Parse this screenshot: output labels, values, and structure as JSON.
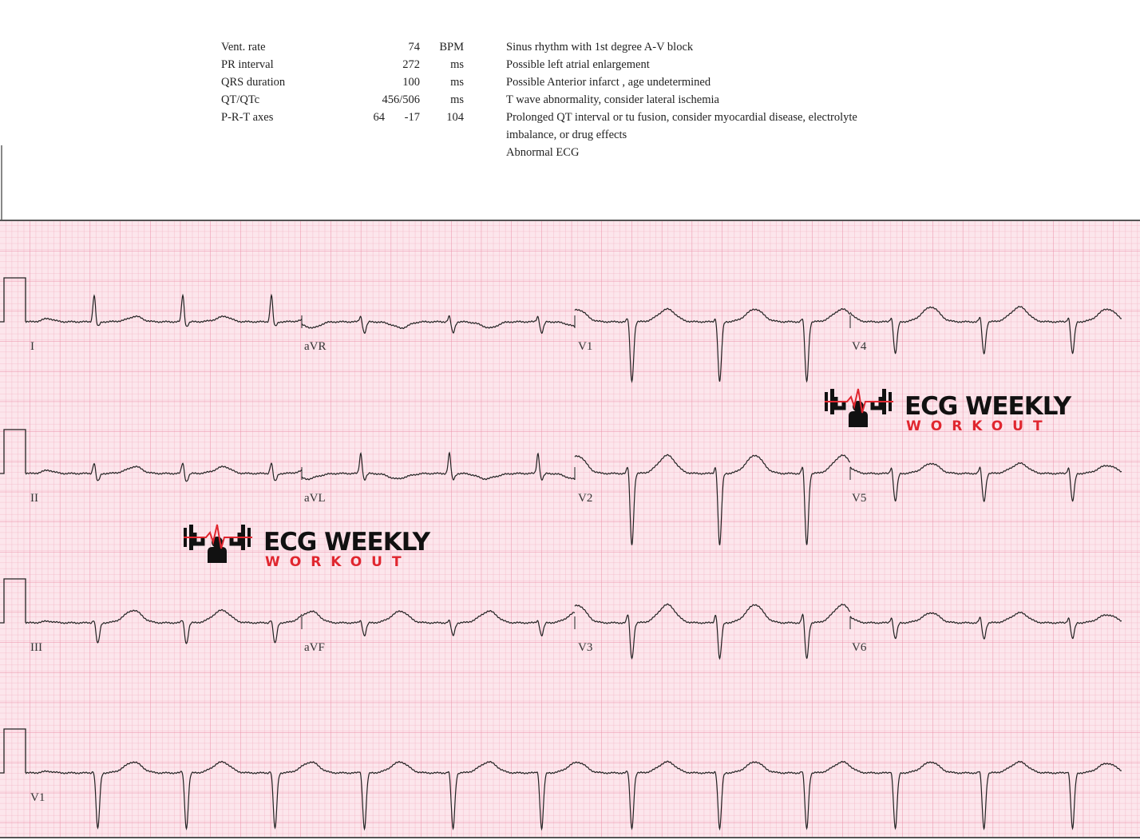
{
  "measurements": [
    {
      "label": "Vent. rate",
      "value": "74",
      "unit": "BPM"
    },
    {
      "label": "PR interval",
      "value": "272",
      "unit": "ms"
    },
    {
      "label": "QRS duration",
      "value": "100",
      "unit": "ms"
    },
    {
      "label": "QT/QTc",
      "value": "456/506",
      "unit": "ms"
    },
    {
      "label": "P-R-T axes",
      "p": "64",
      "r": "-17",
      "t": "104"
    }
  ],
  "interpretation": [
    "Sinus rhythm with 1st degree A-V block",
    "Possible left atrial enlargement",
    "Possible Anterior infarct , age undetermined",
    "T wave abnormality, consider lateral ischemia",
    "Prolonged QT interval or tu fusion, consider myocardial disease, electrolyte",
    "imbalance, or drug effects",
    "Abnormal ECG"
  ],
  "leads": [
    [
      "I",
      "aVR",
      "V1",
      "V4"
    ],
    [
      "II",
      "aVL",
      "V2",
      "V5"
    ],
    [
      "III",
      "aVF",
      "V3",
      "V6"
    ],
    [
      "V1"
    ]
  ],
  "logo": {
    "title": "ECG WEEKLY",
    "subtitle": "WORKOUT"
  }
}
